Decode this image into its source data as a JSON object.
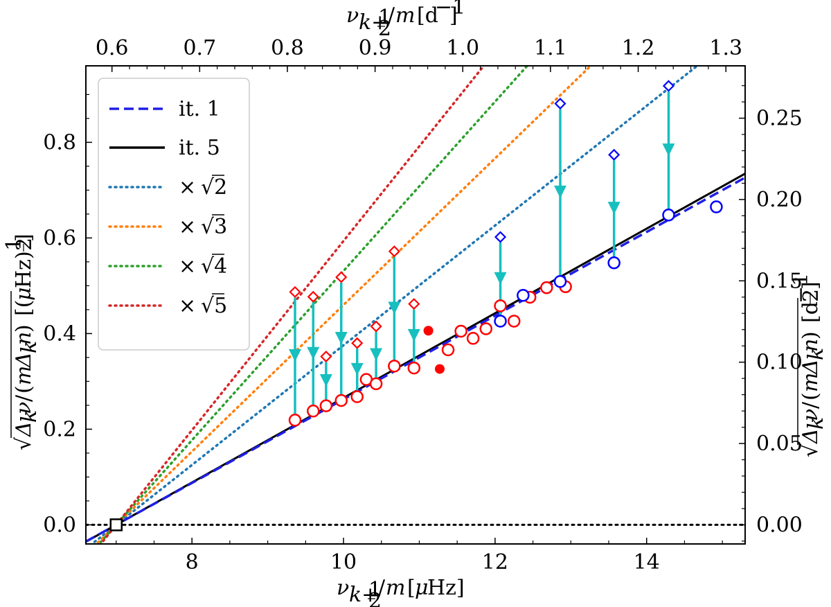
{
  "chart_data": {
    "type": "scatter",
    "xlabel_bottom": "ν_{k+½}/m [μHz]",
    "xlabel_top": "ν_{k+½}/m [d⁻¹]",
    "ylabel_left": "√(Δ_k ν / (m Δ_k n)) [(μHz)^½]",
    "ylabel_right": "√(Δ_k ν / (m Δ_k n)) [d^-½]",
    "xlim": [
      6.6,
      15.3
    ],
    "ylim": [
      -0.04,
      0.96
    ],
    "x_ticks": [
      8,
      10,
      12,
      14
    ],
    "x_tick_labels": [
      "8",
      "10",
      "12",
      "14"
    ],
    "y_ticks": [
      0.0,
      0.2,
      0.4,
      0.6,
      0.8
    ],
    "y_tick_labels": [
      "0.0",
      "0.2",
      "0.4",
      "0.6",
      "0.8"
    ],
    "top_ticks_d": [
      0.6,
      0.7,
      0.8,
      0.9,
      1.0,
      1.1,
      1.2,
      1.3
    ],
    "top_tick_labels": [
      "0.6",
      "0.7",
      "0.8",
      "0.9",
      "1.0",
      "1.1",
      "1.2",
      "1.3"
    ],
    "right_ticks_d": [
      0.0,
      0.05,
      0.1,
      0.15,
      0.2,
      0.25
    ],
    "right_tick_labels": [
      "0.00",
      "0.05",
      "0.10",
      "0.15",
      "0.20",
      "0.25"
    ],
    "unit_conversion": {
      "uHz_per_d": 11.574,
      "sqrt_uHz_per_sqrt_d": 3.402
    },
    "x_intercept": 7.0,
    "lines": [
      {
        "name": "it. 1",
        "style": "dashed",
        "color": "#1f1fe6",
        "x0": 7.0,
        "slope": 0.0875
      },
      {
        "name": "it. 5",
        "style": "solid",
        "color": "#000000",
        "x0": 7.0,
        "slope": 0.0885
      },
      {
        "name": "× √2",
        "style": "dotted",
        "color": "#1f77b4",
        "x0": 7.0,
        "slope": 0.1252
      },
      {
        "name": "× √3",
        "style": "dotted",
        "color": "#ff7f0e",
        "x0": 7.0,
        "slope": 0.1533
      },
      {
        "name": "× √4",
        "style": "dotted",
        "color": "#2ca02c",
        "x0": 7.0,
        "slope": 0.177
      },
      {
        "name": "× √5",
        "style": "dotted",
        "color": "#d62728",
        "x0": 7.0,
        "slope": 0.1979
      }
    ],
    "legend": {
      "position": "top-left",
      "entries": [
        {
          "label": "it. 1",
          "radical": ""
        },
        {
          "label": "it. 5",
          "radical": ""
        },
        {
          "label": "×",
          "radical": "2"
        },
        {
          "label": "×",
          "radical": "3"
        },
        {
          "label": "×",
          "radical": "4"
        },
        {
          "label": "×",
          "radical": "5"
        }
      ]
    },
    "zero_line": {
      "y": 0.0,
      "style": "dotted",
      "color": "#000000"
    },
    "origin_marker": {
      "x": 7.0,
      "y": 0.0,
      "shape": "square"
    },
    "red_circles": [
      [
        9.36,
        0.219
      ],
      [
        9.6,
        0.238
      ],
      [
        9.77,
        0.249
      ],
      [
        9.97,
        0.26
      ],
      [
        10.18,
        0.268
      ],
      [
        10.3,
        0.304
      ],
      [
        10.43,
        0.295
      ],
      [
        10.67,
        0.332
      ],
      [
        10.93,
        0.328
      ],
      [
        11.38,
        0.366
      ],
      [
        11.55,
        0.405
      ],
      [
        11.71,
        0.39
      ],
      [
        11.88,
        0.41
      ],
      [
        12.07,
        0.458
      ],
      [
        12.25,
        0.426
      ],
      [
        12.46,
        0.476
      ],
      [
        12.68,
        0.496
      ],
      [
        12.93,
        0.498
      ]
    ],
    "blue_circles": [
      [
        12.07,
        0.426
      ],
      [
        12.37,
        0.48
      ],
      [
        12.86,
        0.509
      ],
      [
        13.57,
        0.548
      ],
      [
        14.29,
        0.648
      ],
      [
        14.92,
        0.665
      ]
    ],
    "red_filled": [
      [
        11.12,
        0.406
      ],
      [
        11.27,
        0.326
      ]
    ],
    "red_diamonds": [
      [
        9.36,
        0.487
      ],
      [
        9.6,
        0.477
      ],
      [
        9.77,
        0.352
      ],
      [
        9.97,
        0.518
      ],
      [
        10.18,
        0.38
      ],
      [
        10.43,
        0.415
      ],
      [
        10.67,
        0.572
      ],
      [
        10.93,
        0.462
      ]
    ],
    "blue_diamonds": [
      [
        12.07,
        0.602
      ],
      [
        12.86,
        0.881
      ],
      [
        13.57,
        0.774
      ],
      [
        14.29,
        0.918
      ]
    ],
    "arrows": [
      [
        9.36,
        0.487,
        0.219
      ],
      [
        9.6,
        0.477,
        0.238
      ],
      [
        9.77,
        0.352,
        0.249
      ],
      [
        9.97,
        0.518,
        0.26
      ],
      [
        10.18,
        0.38,
        0.268
      ],
      [
        10.43,
        0.415,
        0.295
      ],
      [
        10.67,
        0.572,
        0.332
      ],
      [
        10.93,
        0.462,
        0.328
      ],
      [
        12.07,
        0.602,
        0.426
      ],
      [
        12.86,
        0.881,
        0.509
      ],
      [
        13.57,
        0.774,
        0.548
      ],
      [
        14.29,
        0.918,
        0.648
      ]
    ],
    "arrow_color": "#17bfbf"
  }
}
